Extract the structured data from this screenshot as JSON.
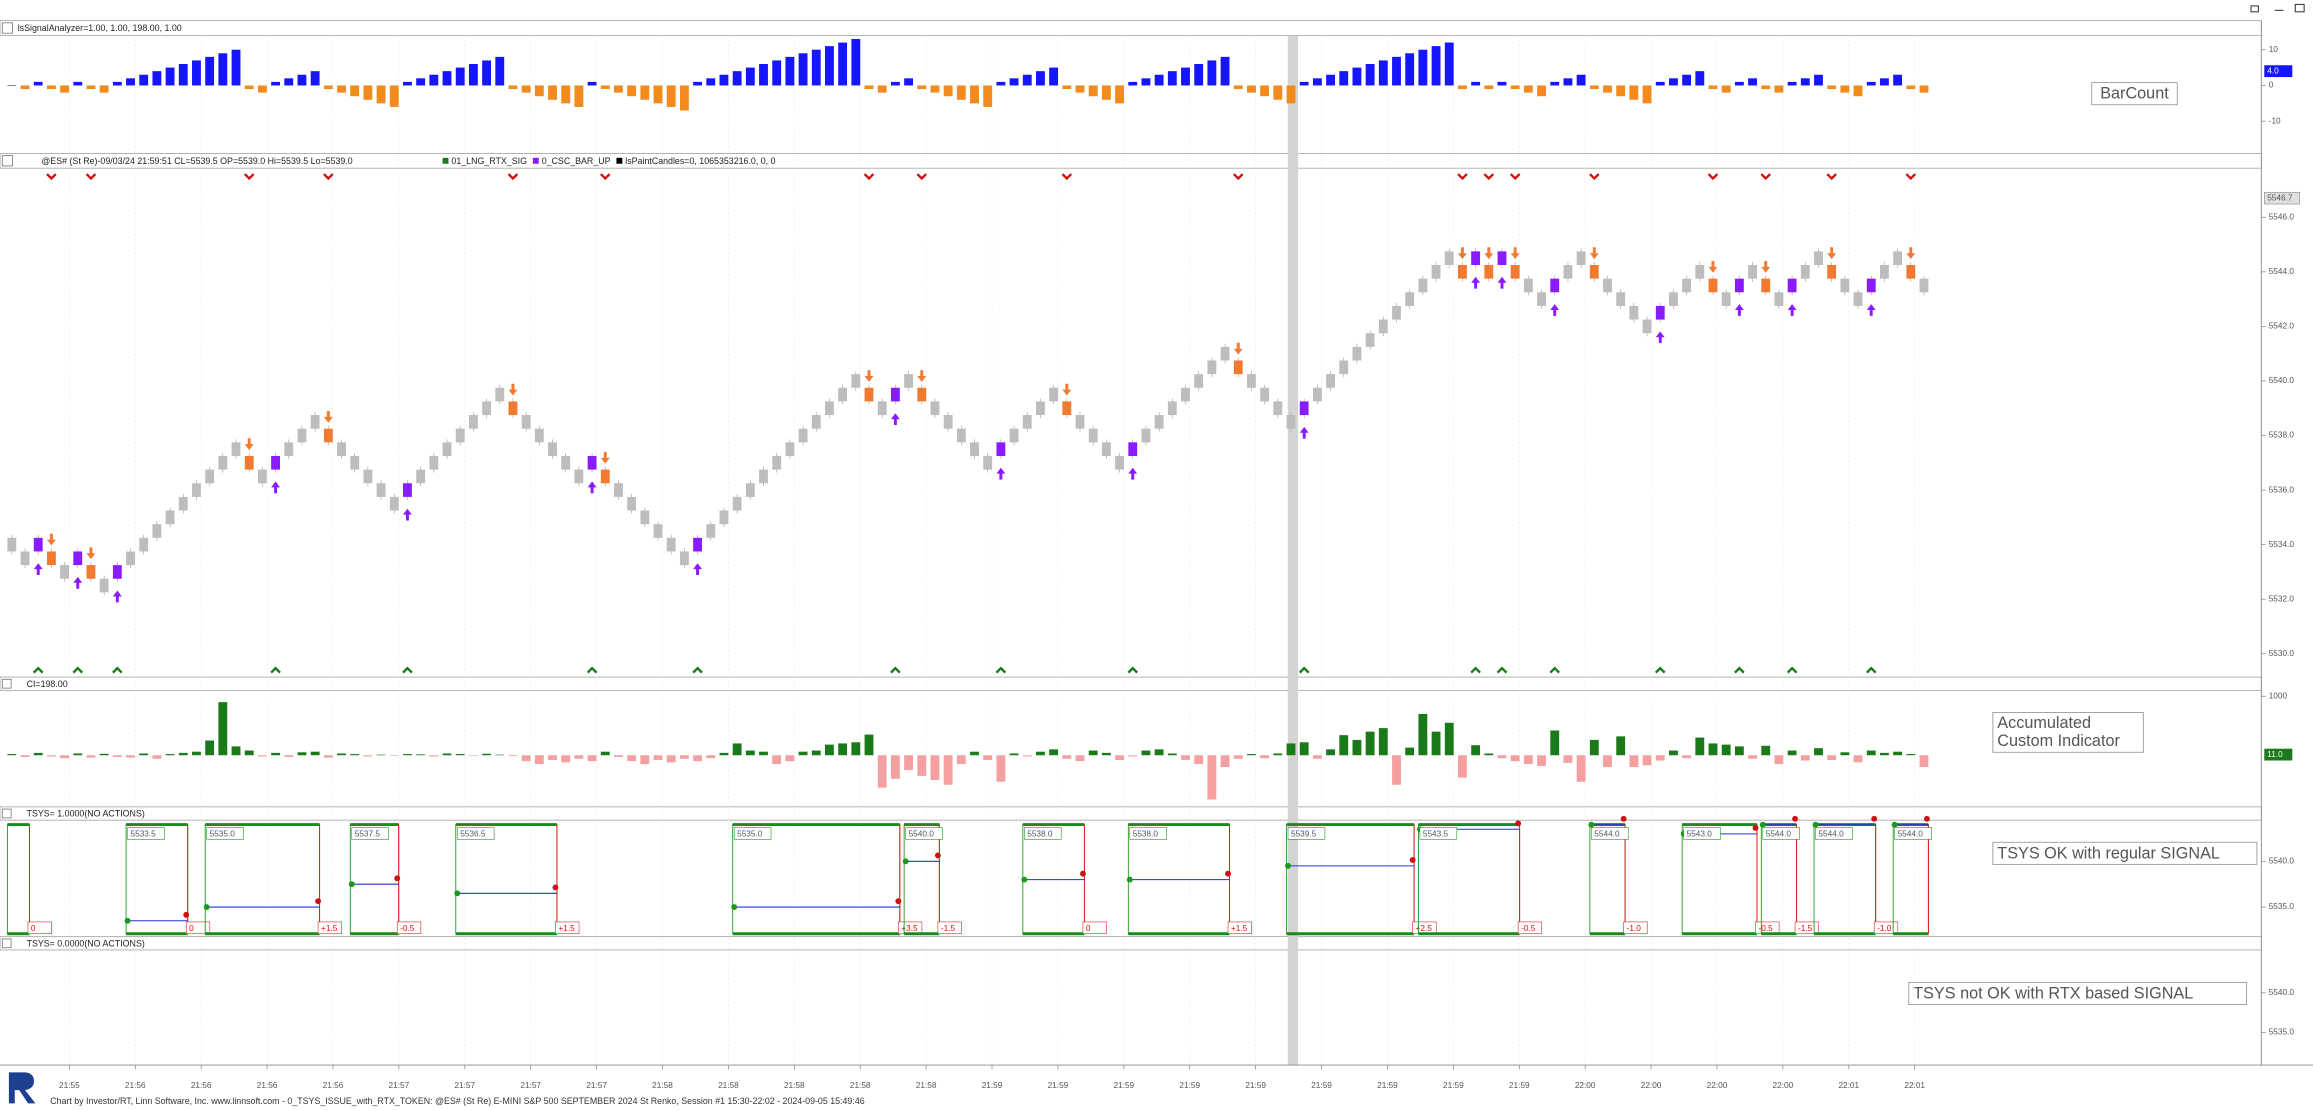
{
  "bar_count": {
    "header": "lsSignalAnalyzer=1.00, 1.00, 198.00, 1.00",
    "annotation": "BarCount",
    "ylim": [
      -19,
      14
    ],
    "yticks": [
      -10,
      0,
      10
    ],
    "marker": {
      "value": 4,
      "label": "4.0"
    },
    "colors": {
      "up": "#1515ff",
      "down": "#f28a1c"
    },
    "values": [
      0,
      -1,
      1,
      -1,
      -2,
      1,
      -1,
      -2,
      1,
      2,
      3,
      4,
      5,
      6,
      7,
      8,
      9,
      10,
      -1,
      -2,
      1,
      2,
      3,
      4,
      -1,
      -2,
      -3,
      -4,
      -5,
      -6,
      1,
      2,
      3,
      4,
      5,
      6,
      7,
      8,
      -1,
      -2,
      -3,
      -4,
      -5,
      -6,
      1,
      -1,
      -2,
      -3,
      -4,
      -5,
      -6,
      -7,
      1,
      2,
      3,
      4,
      5,
      6,
      7,
      8,
      9,
      10,
      11,
      12,
      13,
      -1,
      -2,
      1,
      2,
      -1,
      -2,
      -3,
      -4,
      -5,
      -6,
      1,
      2,
      3,
      4,
      5,
      -1,
      -2,
      -3,
      -4,
      -5,
      1,
      2,
      3,
      4,
      5,
      6,
      7,
      8,
      -1,
      -2,
      -3,
      -4,
      -5,
      1,
      2,
      3,
      4,
      5,
      6,
      7,
      8,
      9,
      10,
      11,
      12,
      -1,
      1,
      -1,
      1,
      -1,
      -2,
      -3,
      1,
      2,
      3,
      -1,
      -2,
      -3,
      -4,
      -5,
      1,
      2,
      3,
      4,
      -1,
      -2,
      1,
      2,
      -1,
      -2,
      1,
      2,
      3,
      -1,
      -2,
      -3,
      1,
      2,
      3,
      -1,
      -2
    ]
  },
  "price": {
    "header": "@ES# (St Re)-09/03/24 21:59:51 CL=5539.5 OP=5539.0 Hi=5539.5 Lo=5539.0",
    "legend": [
      {
        "name": "01_LNG_RTX_SIG",
        "color": "#1a7a1a"
      },
      {
        "name": "0_CSC_BAR_UP",
        "color": "#8a1aff"
      },
      {
        "name": "lsPaintCandles=0, 1065353216.0, 0, 0",
        "color": "#000000"
      }
    ],
    "ylim": [
      5529.2,
      5547.8
    ],
    "yticks": [
      {
        "value": 5530,
        "label": "5530.0"
      },
      {
        "value": 5532,
        "label": "5532.0"
      },
      {
        "value": 5534,
        "label": "5534.0"
      },
      {
        "value": 5536,
        "label": "5536.0"
      },
      {
        "value": 5538,
        "label": "5538.0"
      },
      {
        "value": 5540,
        "label": "5540.0"
      },
      {
        "value": 5542,
        "label": "5542.0"
      },
      {
        "value": 5544,
        "label": "5544.0"
      },
      {
        "value": 5546,
        "label": "5546.0"
      }
    ],
    "marker": 5546.7,
    "colors": {
      "brick": "#bdbdbd",
      "down_signal": "#f07a30",
      "up_signal": "#8a1aff"
    },
    "values": [
      5534,
      5533.5,
      5534,
      5533.5,
      5533,
      5533.5,
      5533,
      5532.5,
      5533,
      5533.5,
      5534,
      5534.5,
      5535,
      5535.5,
      5536,
      5536.5,
      5537,
      5537.5,
      5537,
      5536.5,
      5537,
      5537.5,
      5538,
      5538.5,
      5538,
      5537.5,
      5537,
      5536.5,
      5536,
      5535.5,
      5536,
      5536.5,
      5537,
      5537.5,
      5538,
      5538.5,
      5539,
      5539.5,
      5539,
      5538.5,
      5538,
      5537.5,
      5537,
      5536.5,
      5537,
      5536.5,
      5536,
      5535.5,
      5535,
      5534.5,
      5534,
      5533.5,
      5534,
      5534.5,
      5535,
      5535.5,
      5536,
      5536.5,
      5537,
      5537.5,
      5538,
      5538.5,
      5539,
      5539.5,
      5540,
      5539.5,
      5539,
      5539.5,
      5540,
      5539.5,
      5539,
      5538.5,
      5538,
      5537.5,
      5537,
      5537.5,
      5538,
      5538.5,
      5539,
      5539.5,
      5539,
      5538.5,
      5538,
      5537.5,
      5537,
      5537.5,
      5538,
      5538.5,
      5539,
      5539.5,
      5540,
      5540.5,
      5541,
      5540.5,
      5540,
      5539.5,
      5539,
      5538.5,
      5539,
      5539.5,
      5540,
      5540.5,
      5541,
      5541.5,
      5542,
      5542.5,
      5543,
      5543.5,
      5544,
      5544.5,
      5544,
      5544.5,
      5544,
      5544.5,
      5544,
      5543.5,
      5543,
      5543.5,
      5544,
      5544.5,
      5544,
      5543.5,
      5543,
      5542.5,
      5542,
      5542.5,
      5543,
      5543.5,
      5544,
      5543.5,
      5543,
      5543.5,
      5544,
      5543.5,
      5543,
      5543.5,
      5544,
      5544.5,
      5544,
      5543.5,
      5543,
      5543.5,
      5544,
      5544.5,
      5544,
      5543.5
    ]
  },
  "ci": {
    "header": "CI=198.00",
    "annotation": [
      "Accumulated",
      "Custom Indicator"
    ],
    "ylim": [
      -850,
      1100
    ],
    "yticks": [
      1000
    ],
    "marker": {
      "value": 11,
      "label": "11.0"
    },
    "colors": {
      "up": "#1a7a1a",
      "down": "#f4a0a0"
    },
    "values": [
      20,
      -30,
      40,
      -20,
      -50,
      30,
      -40,
      25,
      -30,
      -40,
      30,
      -60,
      20,
      40,
      60,
      250,
      900,
      150,
      80,
      -20,
      40,
      -30,
      50,
      60,
      -40,
      30,
      20,
      -20,
      10,
      -10,
      20,
      15,
      -20,
      30,
      20,
      -10,
      25,
      10,
      -15,
      -100,
      -150,
      -80,
      -120,
      -60,
      -100,
      60,
      -30,
      -100,
      -150,
      -80,
      -120,
      -60,
      -100,
      -50,
      40,
      200,
      80,
      60,
      -150,
      -100,
      60,
      80,
      180,
      200,
      220,
      350,
      -550,
      -400,
      -250,
      -350,
      -420,
      -500,
      -150,
      60,
      -80,
      -450,
      30,
      -20,
      60,
      100,
      -60,
      -100,
      80,
      40,
      -80,
      -20,
      80,
      100,
      30,
      -80,
      -150,
      -750,
      -200,
      -60,
      20,
      -50,
      30,
      200,
      220,
      -60,
      100,
      340,
      260,
      400,
      460,
      -500,
      130,
      700,
      400,
      550,
      -380,
      170,
      30,
      -50,
      -100,
      -150,
      -180,
      420,
      -130,
      -450,
      260,
      -200,
      320,
      -200,
      -170,
      -90,
      80,
      -50,
      300,
      200,
      180,
      150,
      -60,
      160,
      -150,
      80,
      -90,
      120,
      -80,
      50,
      -120,
      80,
      40,
      60,
      20,
      -200
    ]
  },
  "tsys_ok": {
    "header": "TSYS= 1.0000(NO ACTIONS)",
    "annotation": "TSYS OK with regular SIGNAL",
    "ylim": [
      5531.6,
      5544.5
    ],
    "yticks": [
      {
        "value": 5540,
        "label": "5540.0"
      },
      {
        "value": 5535,
        "label": "5535.0"
      }
    ],
    "trades": [
      {
        "start": 0,
        "end": 1,
        "result": "0"
      },
      {
        "start": 9,
        "end": 13,
        "entry": 5533.5,
        "result": "0"
      },
      {
        "start": 15,
        "end": 23,
        "entry": {
          "value": 5535,
          "label": "5535.0"
        },
        "result": "+1.5"
      },
      {
        "start": 26,
        "end": 29,
        "entry": 5537.5,
        "result": "-0.5"
      },
      {
        "start": 34,
        "end": 41,
        "entry": 5536.5,
        "result": "+1.5"
      },
      {
        "start": 55,
        "end": 67,
        "entry": {
          "value": 5535,
          "label": "5535.0"
        },
        "result": "+3.5"
      },
      {
        "start": 68,
        "end": 70,
        "entry": {
          "value": 5540,
          "label": "5540.0"
        },
        "result": "-1.5"
      },
      {
        "start": 77,
        "end": 81,
        "entry": {
          "value": 5538,
          "label": "5538.0"
        },
        "result": "0"
      },
      {
        "start": 85,
        "end": 92,
        "entry": {
          "value": 5538,
          "label": "5538.0"
        },
        "result": "+1.5"
      },
      {
        "start": 97,
        "end": 106,
        "entry": 5539.5,
        "result": "+2.5"
      },
      {
        "start": 107,
        "end": 114,
        "entry": 5543.5,
        "result": "-0.5"
      },
      {
        "start": 120,
        "end": 122,
        "entry": {
          "value": 5544,
          "label": "5544.0"
        },
        "result": "-1.0"
      },
      {
        "start": 127,
        "end": 132,
        "entry": {
          "value": 5543,
          "label": "5543.0"
        },
        "result": "-0.5"
      },
      {
        "start": 133,
        "end": 135,
        "entry": {
          "value": 5544,
          "label": "5544.0"
        },
        "result": "-1.5"
      },
      {
        "start": 137,
        "end": 141,
        "entry": {
          "value": 5544,
          "label": "5544.0"
        },
        "result": "-1.0"
      },
      {
        "start": 143,
        "end": 145,
        "entry": {
          "value": 5544,
          "label": "5544.0"
        }
      }
    ]
  },
  "tsys_not_ok": {
    "header": "TSYS= 0.0000(NO ACTIONS)",
    "annotation": "TSYS not OK with RTX based SIGNAL",
    "ylim": [
      5530.9,
      5545.4
    ],
    "yticks": [
      {
        "value": 5540,
        "label": "5540.0"
      },
      {
        "value": 5535,
        "label": "5535.0"
      }
    ]
  },
  "time_labels": [
    "21:55",
    "21:56",
    "21:56",
    "21:56",
    "21:56",
    "21:57",
    "21:57",
    "21:57",
    "21:57",
    "21:58",
    "21:58",
    "21:58",
    "21:58",
    "21:58",
    "21:59",
    "21:59",
    "21:59",
    "21:59",
    "21:59",
    "21:59",
    "21:59",
    "21:59",
    "21:59",
    "22:00",
    "22:00",
    "22:00",
    "22:00",
    "22:01",
    "22:01"
  ],
  "footer": "Chart by Investor/RT, Linn Software, Inc. www.linnsoft.com - 0_TSYS_ISSUE_with_RTX_TOKEN: @ES# (St Re) E-MINI S&P 500 SEPTEMBER 2024 St Renko, Session #1 15:30-22:02 - 2024-09-05 15:49:46"
}
